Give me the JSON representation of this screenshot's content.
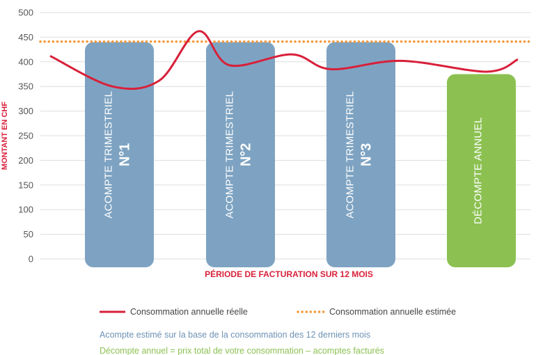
{
  "chart_data": {
    "type": "bar",
    "ylabel": "MONTANT EN CHF",
    "xlabel": "PÉRIODE DE FACTURATION SUR 12 MOIS",
    "ylim": [
      0,
      500
    ],
    "yticks": [
      0,
      50,
      100,
      150,
      200,
      250,
      300,
      350,
      400,
      450,
      500
    ],
    "grid": true,
    "bars": [
      {
        "label": "ACOMPTE TRIMESTRIEL",
        "number": "N°1",
        "value": 440,
        "color": "#7ea3c2"
      },
      {
        "label": "ACOMPTE TRIMESTRIEL",
        "number": "N°2",
        "value": 440,
        "color": "#7ea3c2"
      },
      {
        "label": "ACOMPTE TRIMESTRIEL",
        "number": "N°3",
        "value": 440,
        "color": "#7ea3c2"
      },
      {
        "label": "DÉCOMPTE ANNUEL",
        "number": "",
        "value": 375,
        "color": "#8cc152"
      }
    ],
    "series": [
      {
        "name": "Consommation annuelle réelle",
        "style": "solid",
        "color": "#d8203a",
        "points": [
          [
            0.0,
            412
          ],
          [
            0.8,
            350
          ],
          [
            1.4,
            362
          ],
          [
            1.9,
            462
          ],
          [
            2.3,
            393
          ],
          [
            3.1,
            415
          ],
          [
            3.6,
            385
          ],
          [
            4.5,
            402
          ],
          [
            5.6,
            380
          ],
          [
            6.0,
            405
          ]
        ]
      },
      {
        "name": "Consommation annuelle estimée",
        "style": "dotted",
        "color": "#f39a3b",
        "value": 441
      }
    ]
  },
  "legend": {
    "actual": "Consommation annuelle réelle",
    "estimated": "Consommation annuelle estimée"
  },
  "notes": {
    "acompte": "Acompte estimé sur la base de la consommation des 12 derniers mois",
    "decompte": "Décompte annuel = prix total de votre consommation – acomptes facturés"
  },
  "colors": {
    "acompte_text": "#6d92b5",
    "decompte_text": "#8cc152",
    "axis_label": "#d8203a"
  }
}
